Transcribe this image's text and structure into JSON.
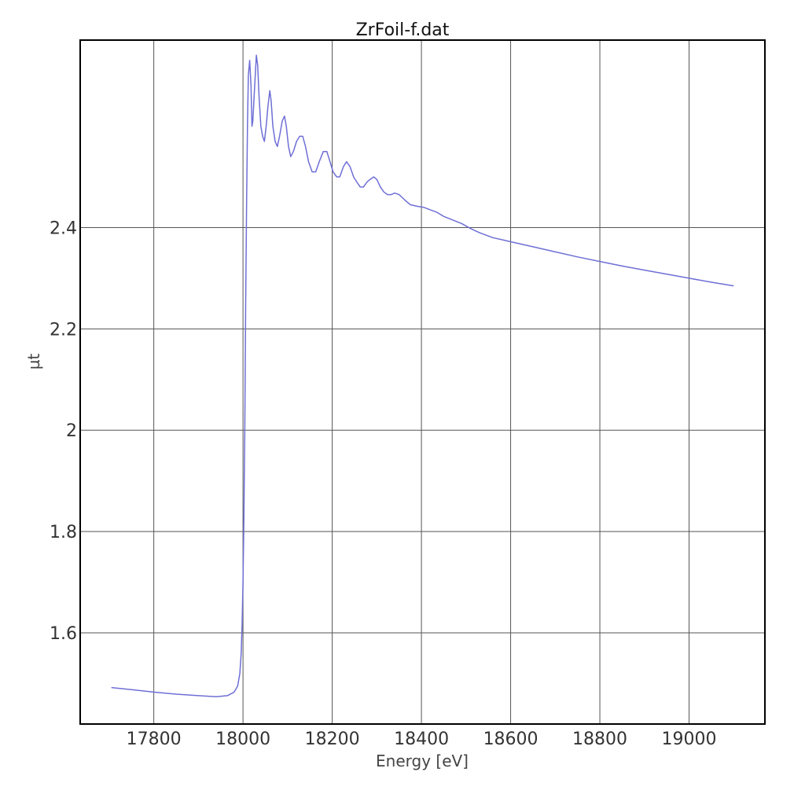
{
  "chart_data": {
    "type": "line",
    "title": "ZrFoil-f.dat",
    "xlabel": "Energy [eV]",
    "ylabel": "µt",
    "xlim": [
      17635,
      19170
    ],
    "ylim": [
      1.42,
      2.77
    ],
    "xticks": [
      17800,
      18000,
      18200,
      18400,
      18600,
      18800,
      19000
    ],
    "yticks": [
      1.6,
      1.8,
      2,
      2.2,
      2.4
    ],
    "xtick_labels": [
      "17800",
      "18000",
      "18200",
      "18400",
      "18600",
      "18800",
      "19000"
    ],
    "ytick_labels": [
      "1.6",
      "1.8",
      "2",
      "2.2",
      "2.4"
    ],
    "grid": true,
    "legend": "none",
    "line_color": "#6f6fd6",
    "series": [
      {
        "x": [
          17705,
          17750,
          17800,
          17850,
          17900,
          17940,
          17965,
          17980,
          17988,
          17993,
          17996,
          17998,
          18000,
          18002,
          18004,
          18006,
          18008,
          18010,
          18012,
          18015,
          18018,
          18020,
          18022,
          18025,
          18030,
          18033,
          18036,
          18040,
          18044,
          18048,
          18052,
          18056,
          18060,
          18063,
          18067,
          18072,
          18077,
          18082,
          18088,
          18093,
          18097,
          18102,
          18107,
          18113,
          18120,
          18127,
          18134,
          18140,
          18147,
          18155,
          18163,
          18171,
          18180,
          18188,
          18195,
          18202,
          18210,
          18217,
          18225,
          18232,
          18240,
          18248,
          18255,
          18263,
          18270,
          18278,
          18285,
          18293,
          18300,
          18308,
          18316,
          18324,
          18332,
          18340,
          18350,
          18362,
          18375,
          18390,
          18405,
          18420,
          18435,
          18450,
          18470,
          18490,
          18510,
          18530,
          18560,
          18600,
          18650,
          18700,
          18750,
          18800,
          18850,
          18900,
          18950,
          19000,
          19050,
          19100
        ],
        "y": [
          1.492,
          1.488,
          1.483,
          1.479,
          1.476,
          1.474,
          1.476,
          1.483,
          1.495,
          1.52,
          1.56,
          1.62,
          1.7,
          1.82,
          2.0,
          2.25,
          2.45,
          2.6,
          2.7,
          2.73,
          2.68,
          2.6,
          2.61,
          2.66,
          2.74,
          2.72,
          2.66,
          2.6,
          2.58,
          2.57,
          2.6,
          2.64,
          2.67,
          2.65,
          2.6,
          2.57,
          2.56,
          2.58,
          2.61,
          2.62,
          2.6,
          2.56,
          2.54,
          2.55,
          2.57,
          2.58,
          2.58,
          2.56,
          2.53,
          2.51,
          2.51,
          2.53,
          2.55,
          2.55,
          2.53,
          2.51,
          2.5,
          2.5,
          2.52,
          2.53,
          2.52,
          2.5,
          2.49,
          2.48,
          2.48,
          2.49,
          2.495,
          2.5,
          2.495,
          2.48,
          2.47,
          2.465,
          2.465,
          2.468,
          2.465,
          2.455,
          2.445,
          2.442,
          2.44,
          2.435,
          2.43,
          2.422,
          2.415,
          2.408,
          2.398,
          2.39,
          2.38,
          2.372,
          2.362,
          2.352,
          2.342,
          2.333,
          2.324,
          2.316,
          2.308,
          2.3,
          2.292,
          2.285
        ]
      }
    ]
  }
}
